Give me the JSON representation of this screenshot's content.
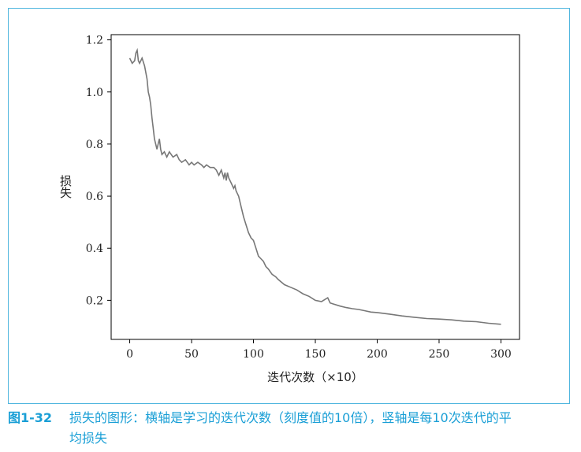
{
  "chart_data": {
    "type": "line",
    "xlabel": "迭代次数（×10）",
    "ylabel": "损失",
    "xlim": [
      -15,
      315
    ],
    "ylim": [
      0.05,
      1.22
    ],
    "xticks": [
      0,
      50,
      100,
      150,
      200,
      250,
      300
    ],
    "yticks": [
      0.2,
      0.4,
      0.6,
      0.8,
      1.0,
      1.2
    ],
    "xtick_labels": [
      "0",
      "50",
      "100",
      "150",
      "200",
      "250",
      "300"
    ],
    "ytick_labels": [
      "0.2",
      "0.4",
      "0.6",
      "0.8",
      "1.0",
      "1.2"
    ],
    "grid": false,
    "line_color": "#777777",
    "series": [
      {
        "x": [
          0,
          2,
          4,
          5,
          6,
          7,
          8,
          10,
          12,
          14,
          15,
          16,
          17,
          18,
          19,
          20,
          21,
          22,
          23,
          24,
          25,
          26,
          28,
          30,
          32,
          35,
          38,
          40,
          42,
          45,
          48,
          50,
          52,
          55,
          58,
          60,
          62,
          65,
          68,
          70,
          72,
          74,
          76,
          77,
          78,
          79,
          80,
          82,
          84,
          85,
          86,
          88,
          90,
          92,
          94,
          96,
          98,
          100,
          102,
          104,
          106,
          108,
          110,
          112,
          115,
          118,
          120,
          125,
          130,
          135,
          140,
          145,
          150,
          155,
          160,
          162,
          165,
          170,
          175,
          180,
          185,
          190,
          195,
          200,
          210,
          220,
          230,
          240,
          250,
          260,
          270,
          280,
          290,
          300
        ],
        "y": [
          1.13,
          1.11,
          1.12,
          1.15,
          1.16,
          1.12,
          1.11,
          1.13,
          1.1,
          1.05,
          1.0,
          0.98,
          0.95,
          0.9,
          0.86,
          0.82,
          0.8,
          0.78,
          0.8,
          0.82,
          0.78,
          0.76,
          0.77,
          0.75,
          0.77,
          0.75,
          0.76,
          0.74,
          0.73,
          0.74,
          0.72,
          0.73,
          0.72,
          0.73,
          0.72,
          0.71,
          0.72,
          0.71,
          0.71,
          0.7,
          0.68,
          0.7,
          0.67,
          0.69,
          0.66,
          0.69,
          0.67,
          0.65,
          0.63,
          0.64,
          0.62,
          0.6,
          0.56,
          0.52,
          0.49,
          0.46,
          0.44,
          0.43,
          0.4,
          0.37,
          0.36,
          0.35,
          0.33,
          0.32,
          0.3,
          0.29,
          0.28,
          0.26,
          0.25,
          0.24,
          0.225,
          0.215,
          0.2,
          0.195,
          0.21,
          0.19,
          0.185,
          0.178,
          0.172,
          0.168,
          0.165,
          0.16,
          0.155,
          0.153,
          0.147,
          0.14,
          0.135,
          0.13,
          0.128,
          0.125,
          0.12,
          0.118,
          0.112,
          0.108
        ]
      }
    ]
  },
  "caption": {
    "figure_number": "图1-32",
    "text_line1": "损失的图形：横轴是学习的迭代次数（刻度值的10倍），竖轴是每10次迭代的平",
    "text_line2": "均损失"
  }
}
